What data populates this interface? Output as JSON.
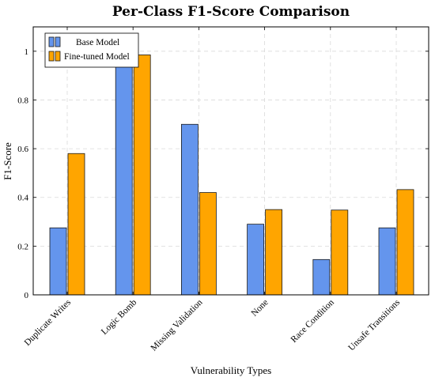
{
  "chart_data": {
    "type": "bar",
    "title": "Per-Class F1-Score Comparison",
    "xlabel": "Vulnerability Types",
    "ylabel": "F1-Score",
    "categories": [
      "Duplicate Writes",
      "Logic Bomb",
      "Missing Validation",
      "None",
      "Race Condition",
      "Unsafe Transitions"
    ],
    "series": [
      {
        "name": "Base Model",
        "color": "#6495ed",
        "values": [
          0.275,
          0.95,
          0.7,
          0.29,
          0.145,
          0.275
        ]
      },
      {
        "name": "Fine-tuned Model",
        "color": "#ffa500",
        "values": [
          0.58,
          0.985,
          0.42,
          0.35,
          0.348,
          0.432
        ]
      }
    ],
    "ylim": [
      0,
      1.1
    ],
    "yticks": [
      0,
      0.2,
      0.4,
      0.6,
      0.8,
      1
    ],
    "grid": true,
    "legend_position": "top-left"
  }
}
